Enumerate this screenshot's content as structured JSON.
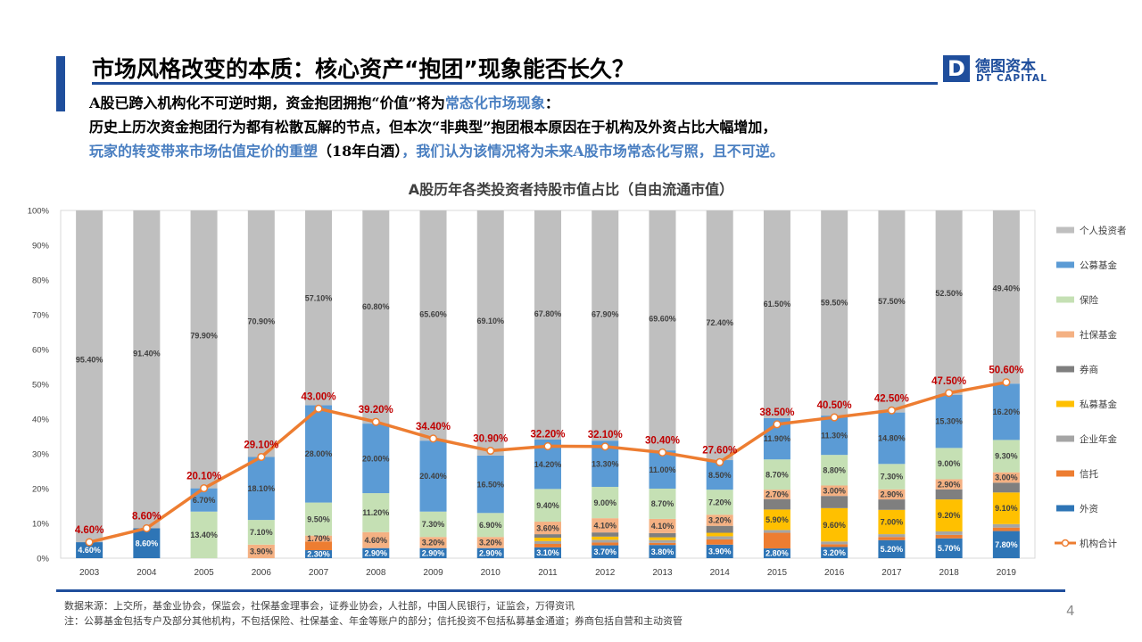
{
  "header": {
    "title": "市场风格改变的本质：核心资产“抱团”现象能否长久？",
    "logo_cn": "德图资本",
    "logo_en": "DT CAPITAL",
    "logo_mark": "D"
  },
  "summary": {
    "l1a": "A股已跨入机构化不可逆时期，资金抱团拥抱“价值”将为",
    "l1b": "常态化市场现象",
    "l1c": "：",
    "l2": "历史上历次资金抱团行为都有松散瓦解的节点，但本次“非典型”抱团根本原因在于机构及外资占比大幅增加，",
    "l3a": "玩家的转变带来市场估值定价的重塑",
    "l3b": "（18年白酒）",
    "l3c": "，我们认为该情况将为未来A股市场常态化写照，且不可逆。"
  },
  "chart_data": {
    "type": "bar",
    "stacked": true,
    "title": "A股历年各类投资者持股市值占比（自由流通市值）",
    "categories": [
      "2003",
      "2004",
      "2005",
      "2006",
      "2007",
      "2008",
      "2009",
      "2010",
      "2011",
      "2012",
      "2013",
      "2014",
      "2015",
      "2016",
      "2017",
      "2018",
      "2019"
    ],
    "ylim": [
      0,
      100
    ],
    "yticks": [
      "0%",
      "10%",
      "20%",
      "30%",
      "40%",
      "50%",
      "60%",
      "70%",
      "80%",
      "90%",
      "100%"
    ],
    "legend_position": "right",
    "stack_order": [
      "外资",
      "信托",
      "企业年金",
      "私募基金",
      "券商",
      "社保基金",
      "保险",
      "公募基金",
      "个人投资者"
    ],
    "series": [
      {
        "name": "个人投资者",
        "color": "#bfbfbf",
        "values": [
          95.4,
          91.4,
          79.9,
          70.9,
          57.1,
          60.8,
          65.6,
          69.1,
          67.8,
          67.9,
          69.6,
          72.4,
          61.5,
          59.5,
          57.5,
          52.5,
          49.4
        ],
        "labels": [
          "95.40%",
          "91.40%",
          "79.90%",
          "70.90%",
          "57.10%",
          "60.80%",
          "65.60%",
          "69.10%",
          "67.80%",
          "67.90%",
          "69.60%",
          "72.40%",
          "61.50%",
          "59.50%",
          "57.50%",
          "52.50%",
          "49.40%"
        ]
      },
      {
        "name": "公募基金",
        "color": "#5b9bd5",
        "values": [
          0,
          0,
          6.7,
          18.1,
          28.0,
          20.0,
          20.4,
          16.5,
          14.2,
          13.3,
          11.0,
          8.5,
          11.9,
          11.3,
          14.8,
          15.3,
          16.2
        ],
        "labels": [
          "",
          "",
          "6.70%",
          "18.10%",
          "28.00%",
          "20.00%",
          "20.40%",
          "16.50%",
          "14.20%",
          "13.30%",
          "11.00%",
          "8.50%",
          "11.90%",
          "11.30%",
          "14.80%",
          "15.30%",
          "16.20%"
        ]
      },
      {
        "name": "保险",
        "color": "#c5e0b4",
        "values": [
          0,
          0,
          13.4,
          7.1,
          9.5,
          11.2,
          7.3,
          6.9,
          9.4,
          9.0,
          8.7,
          7.2,
          8.7,
          8.8,
          7.3,
          9.0,
          9.3
        ],
        "labels": [
          "",
          "",
          "13.40%",
          "7.10%",
          "9.50%",
          "11.20%",
          "7.30%",
          "6.90%",
          "9.40%",
          "9.00%",
          "8.70%",
          "7.20%",
          "8.70%",
          "8.80%",
          "7.30%",
          "9.00%",
          "9.30%"
        ]
      },
      {
        "name": "社保基金",
        "color": "#f4b183",
        "values": [
          0,
          0,
          0,
          3.9,
          1.7,
          4.6,
          3.2,
          3.2,
          3.6,
          4.1,
          4.1,
          3.2,
          2.7,
          3.0,
          2.9,
          2.9,
          3.0
        ],
        "labels": [
          "",
          "",
          "",
          "3.90%",
          "1.70%",
          "4.60%",
          "3.20%",
          "3.20%",
          "3.60%",
          "4.10%",
          "4.10%",
          "3.20%",
          "2.70%",
          "3.00%",
          "2.90%",
          "2.90%",
          "3.00%"
        ]
      },
      {
        "name": "券商",
        "color": "#7f7f7f",
        "values": [
          0,
          0,
          0,
          0,
          0,
          0,
          0,
          0,
          1.0,
          1.2,
          1.2,
          2.0,
          3.0,
          3.5,
          3.0,
          2.9,
          2.8
        ],
        "labels": []
      },
      {
        "name": "私募基金",
        "color": "#ffc000",
        "values": [
          0,
          0,
          0,
          0,
          0,
          0,
          0,
          0,
          1.0,
          0.9,
          0.8,
          1.0,
          5.9,
          9.6,
          7.0,
          9.2,
          9.1
        ],
        "labels": [
          "",
          "",
          "",
          "",
          "",
          "",
          "",
          "",
          "",
          "",
          "",
          "",
          "5.90%",
          "9.60%",
          "7.00%",
          "9.20%",
          "9.10%"
        ]
      },
      {
        "name": "企业年金",
        "color": "#a5a5a5",
        "values": [
          0,
          0,
          0,
          0,
          0,
          0,
          0,
          0,
          0.8,
          0.8,
          0.8,
          0.9,
          0.8,
          0.8,
          0.8,
          1.0,
          1.0
        ],
        "labels": []
      },
      {
        "name": "信托",
        "color": "#ed7d31",
        "values": [
          0,
          0,
          0,
          0,
          2.5,
          0,
          0,
          0,
          1.0,
          0.8,
          0.6,
          1.5,
          4.5,
          0.8,
          0.9,
          1.0,
          1.0
        ],
        "labels": []
      },
      {
        "name": "外资",
        "color": "#2e75b6",
        "values": [
          4.6,
          8.6,
          0,
          0,
          2.3,
          2.9,
          2.9,
          2.9,
          3.1,
          3.7,
          3.8,
          3.9,
          2.8,
          3.2,
          5.2,
          5.7,
          7.8
        ],
        "labels": [
          "4.60%",
          "8.60%",
          "",
          "",
          "2.30%",
          "2.90%",
          "2.90%",
          "2.90%",
          "3.10%",
          "3.70%",
          "3.80%",
          "3.90%",
          "2.80%",
          "3.20%",
          "5.20%",
          "5.70%",
          "7.80%"
        ]
      }
    ],
    "line_series": {
      "name": "机构合计",
      "color": "#ed7d31",
      "values": [
        4.6,
        8.6,
        20.1,
        29.1,
        43.0,
        39.2,
        34.4,
        30.9,
        32.2,
        32.1,
        30.4,
        27.6,
        38.5,
        40.5,
        42.5,
        47.5,
        50.6
      ],
      "labels": [
        "4.60%",
        "8.60%",
        "20.10%",
        "29.10%",
        "43.00%",
        "39.20%",
        "34.40%",
        "30.90%",
        "32.20%",
        "32.10%",
        "30.40%",
        "27.60%",
        "38.50%",
        "40.50%",
        "42.50%",
        "47.50%",
        "50.60%"
      ]
    },
    "legend_order": [
      "个人投资者",
      "公募基金",
      "保险",
      "社保基金",
      "券商",
      "私募基金",
      "企业年金",
      "信托",
      "外资",
      "机构合计"
    ]
  },
  "footer": {
    "source": "数据来源：上交所，基金业协会，保监会，社保基金理事会，证券业协会，人社部，中国人民银行，证监会，万得资讯",
    "note": "注：公募基金包括专户及部分其他机构，不包括保险、社保基金、年金等账户的部分；信托投资不包括私募基金通道；券商包括自营和主动资管",
    "page": "4"
  }
}
